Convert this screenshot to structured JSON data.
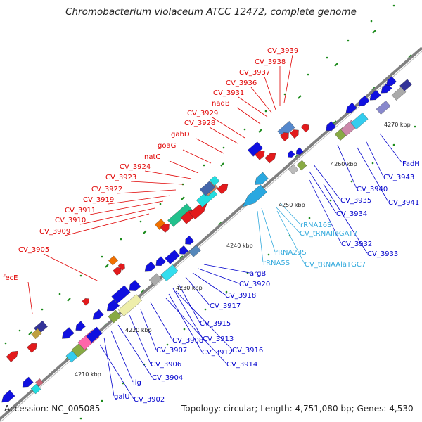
{
  "title": "Chromobacterium violaceum ATCC 12472, complete genome",
  "footer": {
    "accession": "Accession: NC_005085",
    "summary": "Topology: circular; Length: 4,751,080 bp; Genes: 4,530"
  },
  "colors": {
    "backbone": "#808080",
    "forward_strand": "#e31a1c",
    "reverse_strand": "#1010e0",
    "rna": "#2aa8e0",
    "label_red": "#e00000",
    "label_blue": "#0000cc",
    "label_cyan": "#33aadd",
    "tick_green": "#1a8a1a"
  },
  "kbp_markers": [
    "4210 kbp",
    "4220 kbp",
    "4230 kbp",
    "4240 kbp",
    "4250 kbp",
    "4260 kbp",
    "4270 kbp"
  ],
  "labels": {
    "above": [
      "CV_3939",
      "CV_3938",
      "CV_3937",
      "CV_3936",
      "CV_3931",
      "nadB",
      "CV_3929",
      "CV_3928",
      "gabD",
      "goaG",
      "natC",
      "CV_3924",
      "CV_3923",
      "CV_3922",
      "CV_3919",
      "CV_3911",
      "CV_3910",
      "CV_3909",
      "CV_3905",
      "fecE"
    ],
    "below": [
      "FadH",
      "CV_3943",
      "CV_3941",
      "CV_3940",
      "CV_3935",
      "CV_3934",
      "CV_3932",
      "CV_3933",
      "argB",
      "CV_3920",
      "CV_3918",
      "CV_3917",
      "CV_3915",
      "CV_3913",
      "CV_3916",
      "CV_3912",
      "CV_3914",
      "CV_3908",
      "CV_3907",
      "CV_3906",
      "CV_3904",
      "lig",
      "galU",
      "CV_3902"
    ],
    "rna": [
      "rRNA16S",
      "CV_tRNAIleGAT7",
      "rRNA23S",
      "rRNA5S",
      "CV_tRNAAlaTGC7"
    ]
  }
}
